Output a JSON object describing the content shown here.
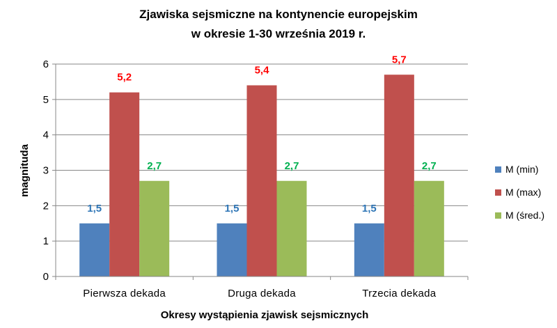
{
  "chart_data": {
    "type": "bar",
    "title_line1": "Zjawiska sejsmiczne na kontynencie europejskim",
    "title_line2": "w okresie 1-30  września 2019 r.",
    "xlabel": "Okresy wystąpienia  zjawisk  sejsmicznych",
    "ylabel": "magnituda",
    "ylim": [
      0,
      6
    ],
    "yticks": [
      "0",
      "1",
      "2",
      "3",
      "4",
      "5",
      "6"
    ],
    "grid": true,
    "legend_position": "right",
    "categories": [
      "Pierwsza dekada",
      "Druga dekada",
      "Trzecia dekada"
    ],
    "series": [
      {
        "name": "M (min)",
        "color": "#4F81BD",
        "label_color": "#2E75B6",
        "values": [
          1.5,
          1.5,
          1.5
        ],
        "labels": [
          "1,5",
          "1,5",
          "1,5"
        ]
      },
      {
        "name": "M (max)",
        "color": "#C0504D",
        "label_color": "#FF0000",
        "values": [
          5.2,
          5.4,
          5.7
        ],
        "labels": [
          "5,2",
          "5,4",
          "5,7"
        ]
      },
      {
        "name": "M (śred.)",
        "color": "#9BBB59",
        "label_color": "#00B050",
        "values": [
          2.7,
          2.7,
          2.7
        ],
        "labels": [
          "2,7",
          "2,7",
          "2,7"
        ]
      }
    ]
  }
}
